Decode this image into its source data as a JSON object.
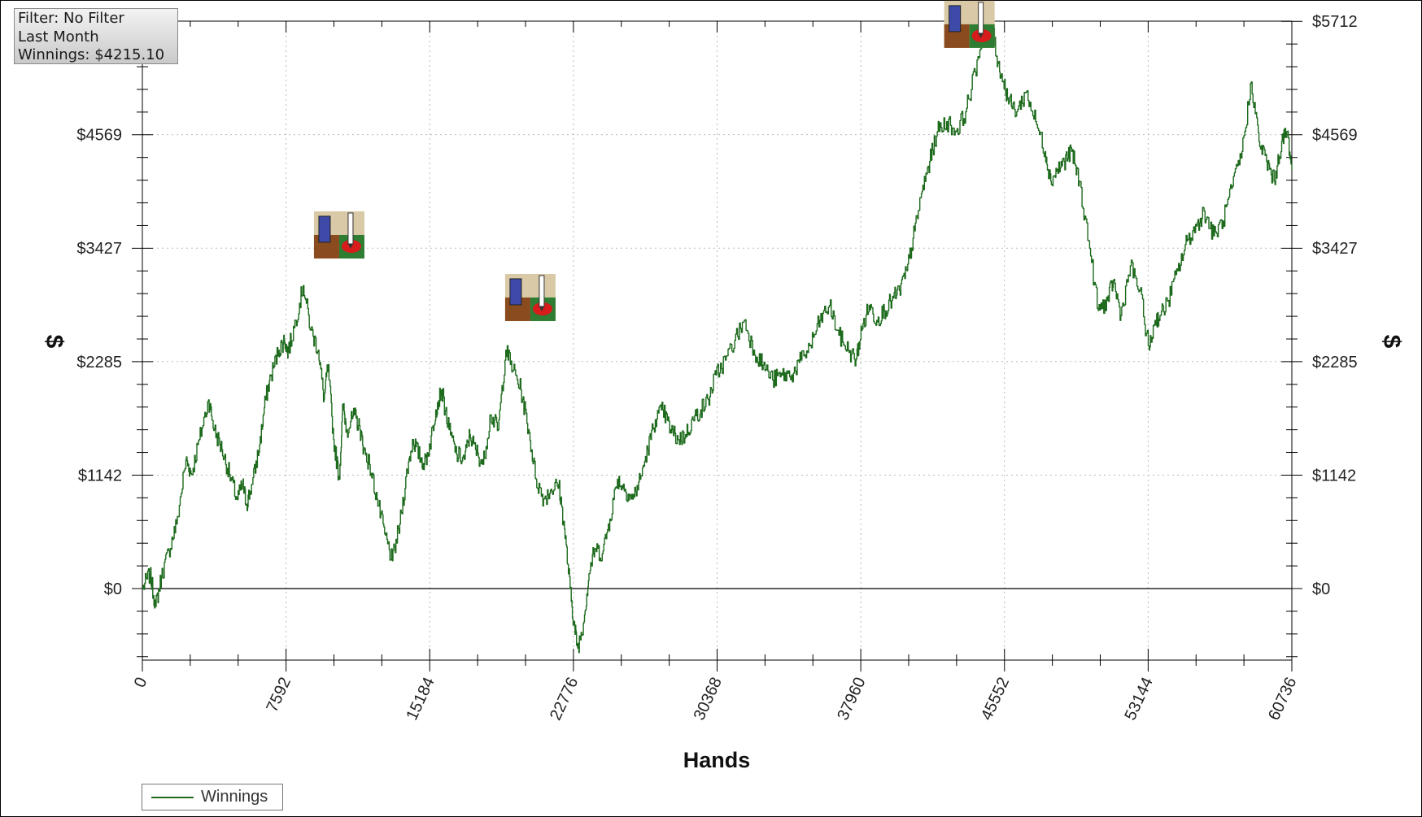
{
  "info_box": {
    "filter": "Filter: No Filter",
    "period": "Last Month",
    "winnings": "Winnings: $4215.10"
  },
  "legend": {
    "items": [
      {
        "label": "Winnings",
        "color": "#1e6b1e"
      }
    ]
  },
  "markers": [
    {
      "name": "hand-marker-icon",
      "x": 10400,
      "y": 3560
    },
    {
      "name": "hand-marker-icon",
      "x": 20500,
      "y": 2930
    },
    {
      "name": "hand-marker-icon",
      "x": 43700,
      "y": 5680
    }
  ],
  "chart_data": {
    "type": "line",
    "title": "",
    "xlabel": "Hands",
    "ylabel": "$",
    "ylabel_right": "$",
    "xlim": [
      0,
      60736
    ],
    "ylim": [
      -720,
      5712
    ],
    "x_ticks": [
      0,
      7592,
      15184,
      22776,
      30368,
      37960,
      45552,
      53144,
      60736
    ],
    "x_tick_labels": [
      "0",
      "7592",
      "15184",
      "22776",
      "30368",
      "37960",
      "45552",
      "53144",
      "60736"
    ],
    "y_ticks": [
      0,
      1142,
      2285,
      3427,
      4569,
      5712
    ],
    "y_tick_labels": [
      "$0",
      "$1142",
      "$2285",
      "$3427",
      "$4569",
      "$5712"
    ],
    "grid": true,
    "legend_position": "bottom-left",
    "series": [
      {
        "name": "Winnings",
        "color": "#1e6b1e",
        "x": [
          0,
          400,
          700,
          1000,
          1400,
          1800,
          2300,
          2600,
          3000,
          3500,
          3800,
          4200,
          4600,
          5000,
          5300,
          5500,
          5800,
          6200,
          6500,
          6800,
          7200,
          7500,
          7700,
          8100,
          8500,
          8900,
          9300,
          9600,
          9800,
          10100,
          10400,
          10600,
          10800,
          11200,
          11500,
          11700,
          12000,
          12400,
          12800,
          13200,
          13600,
          14000,
          14300,
          14600,
          14900,
          15200,
          15500,
          15800,
          16200,
          16600,
          17000,
          17300,
          17600,
          18000,
          18400,
          18800,
          19200,
          19600,
          20000,
          20400,
          20800,
          21200,
          21600,
          22000,
          22300,
          22600,
          22800,
          23000,
          23300,
          23600,
          23900,
          24300,
          24700,
          25100,
          25500,
          25900,
          26300,
          26700,
          27100,
          27500,
          27900,
          28300,
          28700,
          29100,
          29500,
          29900,
          30300,
          30800,
          31300,
          31800,
          32300,
          32800,
          33300,
          33800,
          34300,
          34800,
          35300,
          35800,
          36300,
          36800,
          37300,
          37700,
          38000,
          38400,
          38800,
          39200,
          39600,
          40000,
          40400,
          40800,
          41200,
          41600,
          42000,
          42500,
          43000,
          43500,
          44000,
          44500,
          44900,
          45200,
          45500,
          45800,
          46200,
          46700,
          47200,
          47700,
          48000,
          48300,
          48700,
          49100,
          49500,
          50000,
          50500,
          51000,
          51300,
          51700,
          52200,
          52700,
          53200,
          53500,
          53800,
          54200,
          54700,
          55200,
          55700,
          56100,
          56600,
          57100,
          57600,
          58100,
          58600,
          59000,
          59400,
          59800,
          60200,
          60500,
          60736
        ],
        "y": [
          0,
          150,
          -180,
          120,
          380,
          650,
          1300,
          1150,
          1500,
          1900,
          1600,
          1400,
          1150,
          900,
          1050,
          850,
          1050,
          1450,
          1900,
          2150,
          2400,
          2500,
          2380,
          2700,
          3050,
          2600,
          2400,
          1900,
          2250,
          1500,
          1100,
          1850,
          1600,
          1750,
          1600,
          1400,
          1250,
          900,
          550,
          280,
          650,
          1200,
          1500,
          1350,
          1250,
          1450,
          1800,
          2000,
          1600,
          1350,
          1300,
          1550,
          1400,
          1250,
          1750,
          1600,
          2400,
          2200,
          2000,
          1600,
          1100,
          900,
          1000,
          1050,
          600,
          0,
          -350,
          -600,
          -350,
          150,
          400,
          350,
          700,
          1100,
          1000,
          900,
          1100,
          1400,
          1700,
          1800,
          1600,
          1500,
          1550,
          1700,
          1800,
          1900,
          2150,
          2300,
          2500,
          2700,
          2400,
          2250,
          2100,
          2150,
          2150,
          2300,
          2450,
          2700,
          2850,
          2550,
          2400,
          2300,
          2600,
          2850,
          2700,
          2800,
          2900,
          3000,
          3200,
          3600,
          4000,
          4300,
          4600,
          4700,
          4600,
          4800,
          5200,
          5700,
          5650,
          5300,
          5100,
          4900,
          4800,
          5000,
          4700,
          4400,
          4100,
          4200,
          4300,
          4400,
          4100,
          3500,
          2800,
          2900,
          3100,
          2750,
          3250,
          3000,
          2400,
          2700,
          2750,
          2900,
          3200,
          3500,
          3650,
          3800,
          3550,
          3700,
          4050,
          4400,
          5100,
          4500,
          4300,
          4100,
          4500,
          4600,
          4215
        ]
      }
    ]
  }
}
